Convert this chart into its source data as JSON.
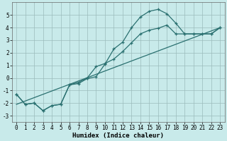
{
  "background_color": "#c8eaea",
  "grid_color": "#9bbcbc",
  "line_color": "#2a7070",
  "xlabel": "Humidex (Indice chaleur)",
  "ylim": [
    -3.5,
    6.0
  ],
  "xlim": [
    -0.5,
    23.5
  ],
  "yticks": [
    -3,
    -2,
    -1,
    0,
    1,
    2,
    3,
    4,
    5
  ],
  "xticks": [
    0,
    1,
    2,
    3,
    4,
    5,
    6,
    7,
    8,
    9,
    10,
    11,
    12,
    13,
    14,
    15,
    16,
    17,
    18,
    19,
    20,
    21,
    22,
    23
  ],
  "line1_x": [
    0,
    1,
    2,
    3,
    4,
    5,
    6,
    7,
    8,
    9,
    10,
    11,
    12,
    13,
    14,
    15,
    16,
    17,
    18,
    19,
    20,
    21,
    22,
    23
  ],
  "line1_y": [
    -1.3,
    -2.1,
    -2.0,
    -2.6,
    -2.2,
    -2.1,
    -0.55,
    -0.45,
    -0.05,
    0.1,
    1.1,
    2.3,
    2.85,
    4.0,
    4.85,
    5.3,
    5.45,
    5.1,
    4.35,
    3.5,
    3.5,
    3.5,
    3.5,
    4.0
  ],
  "line2_x": [
    0,
    1,
    2,
    3,
    4,
    5,
    6,
    7,
    8,
    9,
    10,
    11,
    12,
    13,
    14,
    15,
    16,
    17,
    18,
    19,
    20,
    21,
    22,
    23
  ],
  "line2_y": [
    -1.3,
    -2.1,
    -2.0,
    -2.6,
    -2.2,
    -2.1,
    -0.55,
    -0.35,
    0.0,
    0.9,
    1.15,
    1.5,
    2.1,
    2.8,
    3.5,
    3.8,
    3.95,
    4.2,
    3.5,
    3.5,
    3.5,
    3.5,
    3.5,
    4.0
  ],
  "line3_x": [
    0,
    23
  ],
  "line3_y": [
    -2.1,
    4.0
  ],
  "xlabel_fontsize": 6.5,
  "tick_fontsize": 5.5
}
